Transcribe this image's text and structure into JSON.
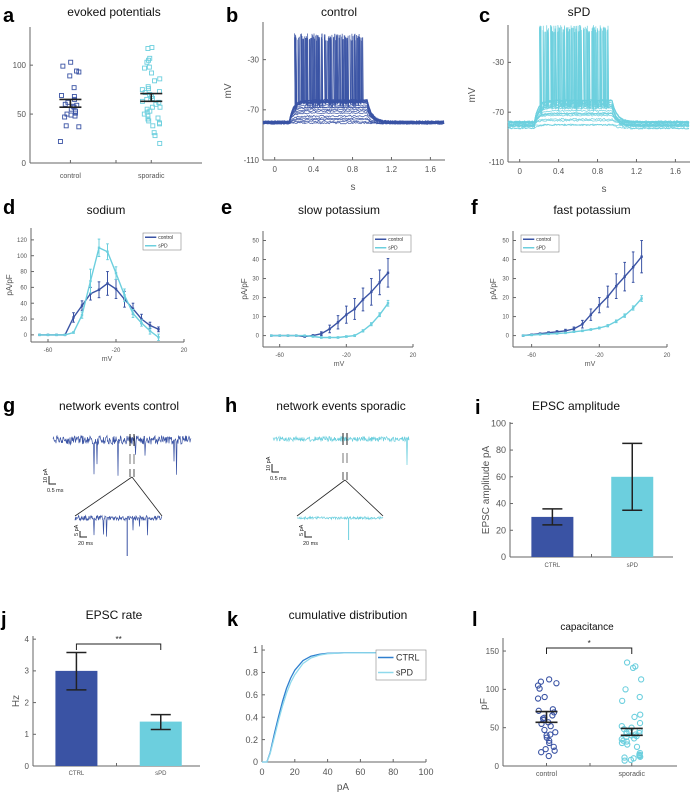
{
  "colors": {
    "control": "#3a53a4",
    "spd": "#6ccfde",
    "ctrl_line": "#2f7fcf",
    "spd_line": "#8fd9ec",
    "axis": "#666666",
    "error": "#222222"
  },
  "chart_data": [
    {
      "panel": "a",
      "type": "scatter",
      "title": "evoked potentials",
      "categories": [
        "control",
        "sporadic"
      ],
      "yticks": [
        0,
        50,
        100
      ],
      "ylim": [
        0,
        139
      ],
      "series": [
        {
          "values": [
            22,
            37,
            38,
            47,
            48,
            49,
            50,
            51,
            53,
            55,
            57,
            58,
            59,
            60,
            62,
            65,
            68,
            69,
            77,
            89,
            93,
            94,
            99,
            103
          ],
          "error": [
            57,
            65
          ]
        },
        {
          "values": [
            20,
            28,
            31,
            38,
            40,
            41,
            43,
            45,
            46,
            48,
            50,
            52,
            53,
            55,
            57,
            57,
            60,
            62,
            63,
            65,
            66,
            68,
            70,
            72,
            73,
            75,
            76,
            78,
            84,
            86,
            92,
            97,
            98,
            103,
            105,
            107,
            117,
            118
          ],
          "error": [
            63,
            71
          ]
        }
      ],
      "marker": "square"
    },
    {
      "panel": "b",
      "type": "line",
      "title": "control",
      "xlabel": "s",
      "ylabel": "mV",
      "xticks": [
        0,
        0.4,
        0.8,
        1.2,
        1.6
      ],
      "yticks": [
        -110,
        -70,
        -30
      ],
      "xlim": [
        -0.12,
        1.75
      ],
      "ylim": [
        -110,
        0
      ],
      "color": "#3a53a4"
    },
    {
      "panel": "c",
      "type": "line",
      "title": "sPD",
      "xlabel": "s",
      "ylabel": "mV",
      "xticks": [
        0,
        0.4,
        0.8,
        1.2,
        1.6
      ],
      "yticks": [
        -110,
        -70,
        -30
      ],
      "xlim": [
        -0.12,
        1.75
      ],
      "ylim": [
        -110,
        0
      ],
      "color": "#6ccfde"
    },
    {
      "panel": "d",
      "type": "line",
      "title": "sodium",
      "xlabel": "mV",
      "ylabel": "pA/pF",
      "xticks": [
        -60,
        -20,
        20
      ],
      "yticks": [
        0,
        20,
        40,
        60,
        80,
        100,
        120
      ],
      "xlim": [
        -70,
        20
      ],
      "ylim": [
        -9,
        135
      ],
      "x": [
        -65,
        -60,
        -55,
        -50,
        -45,
        -40,
        -35,
        -30,
        -25,
        -20,
        -15,
        -10,
        -5,
        0,
        5
      ],
      "series": [
        {
          "name": "control",
          "values": [
            0,
            0,
            0,
            0,
            22,
            37,
            52,
            57,
            65,
            58,
            45,
            33,
            20,
            12,
            7
          ],
          "errors": [
            0,
            0,
            0,
            0,
            6,
            6,
            8,
            10,
            15,
            12,
            10,
            7,
            6,
            4,
            3
          ]
        },
        {
          "name": "sPD",
          "values": [
            0,
            0,
            0,
            0,
            3,
            25,
            68,
            110,
            105,
            78,
            50,
            27,
            15,
            5,
            -3
          ],
          "errors": [
            0,
            0,
            0,
            0,
            1,
            4,
            15,
            11,
            10,
            8,
            8,
            5,
            4,
            4,
            4
          ]
        }
      ],
      "legend": "top-right"
    },
    {
      "panel": "e",
      "type": "line",
      "title": "slow potassium",
      "xlabel": "mV",
      "ylabel": "pA/pF",
      "xticks": [
        -60,
        -20,
        20
      ],
      "yticks": [
        0,
        10,
        20,
        30,
        40,
        50
      ],
      "xlim": [
        -70,
        20
      ],
      "ylim": [
        -6,
        55
      ],
      "x": [
        -65,
        -60,
        -55,
        -50,
        -45,
        -40,
        -35,
        -30,
        -25,
        -20,
        -15,
        -10,
        -5,
        0,
        5
      ],
      "series": [
        {
          "name": "control",
          "values": [
            0,
            0,
            0,
            0,
            -0.5,
            0,
            1,
            3.5,
            7,
            11,
            14,
            19,
            23,
            28,
            33
          ],
          "errors": [
            0,
            0,
            0,
            0,
            0.3,
            0.5,
            1,
            2,
            3.5,
            4.5,
            5.5,
            6,
            7,
            6.5,
            7.5
          ]
        },
        {
          "name": "sPD",
          "values": [
            0,
            0,
            0,
            0,
            0,
            -0.5,
            -1,
            -1,
            -1,
            -0.5,
            0,
            2.5,
            6,
            11,
            17
          ],
          "errors": [
            0,
            0,
            0,
            0,
            0,
            0.3,
            0.4,
            0.4,
            0.4,
            0.4,
            0.5,
            0.6,
            0.8,
            1,
            1.5
          ]
        }
      ],
      "legend": "top-right"
    },
    {
      "panel": "f",
      "type": "line",
      "title": "fast potassium",
      "xlabel": "mV",
      "ylabel": "pA/pF",
      "xticks": [
        -60,
        -20,
        20
      ],
      "yticks": [
        0,
        10,
        20,
        30,
        40,
        50
      ],
      "xlim": [
        -71,
        20
      ],
      "ylim": [
        -6,
        55
      ],
      "x": [
        -65,
        -60,
        -55,
        -50,
        -45,
        -40,
        -35,
        -30,
        -25,
        -20,
        -15,
        -10,
        -5,
        0,
        5
      ],
      "series": [
        {
          "name": "control",
          "values": [
            0,
            0.5,
            1,
            1.5,
            2,
            2.5,
            3.5,
            6,
            11,
            16,
            20.5,
            26,
            31,
            36,
            41.5
          ],
          "errors": [
            0.3,
            0.3,
            0.4,
            0.5,
            0.6,
            0.8,
            1,
            2,
            3,
            4,
            5.5,
            6.5,
            7.5,
            8,
            8.5
          ]
        },
        {
          "name": "sPD",
          "values": [
            0,
            0.3,
            0.6,
            0.9,
            1.1,
            1.4,
            2,
            2.5,
            3.2,
            4,
            5.2,
            7.5,
            10.5,
            14.5,
            19.5
          ],
          "errors": [
            0.2,
            0.2,
            0.2,
            0.2,
            0.3,
            0.3,
            0.3,
            0.4,
            0.4,
            0.5,
            0.6,
            0.7,
            0.9,
            1.1,
            1.5
          ]
        }
      ],
      "legend": "top-left"
    },
    {
      "panel": "g",
      "type": "trace",
      "title": "network events control",
      "color": "#3a53a4",
      "scale_bars": {
        "main_y": "10 pA",
        "main_x": "0.5 ms",
        "zoom_y": "5 pA",
        "zoom_x": "20 ms"
      }
    },
    {
      "panel": "h",
      "type": "trace",
      "title": "network events sporadic",
      "color": "#6ccfde",
      "scale_bars": {
        "main_y": "10 pA",
        "main_x": "0.5 ms",
        "zoom_y": "5 pA",
        "zoom_x": "20 ms"
      }
    },
    {
      "panel": "i",
      "type": "bar",
      "title": "EPSC amplitude",
      "ylabel": "EPSC amplitude pA",
      "categories": [
        "CTRL",
        "sPD"
      ],
      "values": [
        30,
        60
      ],
      "error_low": [
        24,
        35
      ],
      "error_high": [
        36,
        85
      ],
      "yticks": [
        0,
        20,
        40,
        60,
        80,
        100
      ],
      "ylim": [
        0,
        101
      ]
    },
    {
      "panel": "j",
      "type": "bar",
      "title": "EPSC rate",
      "ylabel": "Hz",
      "categories": [
        "CTRL",
        "sPD"
      ],
      "values": [
        3.0,
        1.4
      ],
      "error_low": [
        2.4,
        1.15
      ],
      "error_high": [
        3.58,
        1.62
      ],
      "yticks": [
        0,
        1,
        2,
        3,
        4
      ],
      "ylim": [
        0,
        4.1
      ],
      "significance": "**"
    },
    {
      "panel": "k",
      "type": "line",
      "title": "cumulative distribution",
      "xlabel": "pA",
      "xticks": [
        0,
        20,
        40,
        60,
        80,
        100
      ],
      "yticks": [
        0,
        0.2,
        0.4,
        0.6,
        0.8,
        1
      ],
      "yticklabels": [
        "0",
        "0.2",
        "0.4",
        "0.6",
        "0.8",
        "1"
      ],
      "xlim": [
        0,
        100
      ],
      "ylim": [
        0,
        1.045
      ],
      "x": [
        0,
        3,
        5,
        7.5,
        10,
        12.5,
        15,
        17.5,
        20,
        25,
        30,
        35,
        40,
        50,
        60,
        80,
        100
      ],
      "series": [
        {
          "name": "CTRL",
          "values": [
            0,
            0,
            0.086,
            0.25,
            0.4,
            0.54,
            0.66,
            0.75,
            0.82,
            0.906,
            0.946,
            0.962,
            0.971,
            0.975,
            0.976,
            0.977,
            0.978
          ]
        },
        {
          "name": "sPD",
          "values": [
            0,
            0,
            0.076,
            0.22,
            0.366,
            0.5,
            0.616,
            0.71,
            0.78,
            0.88,
            0.93,
            0.955,
            0.967,
            0.974,
            0.975,
            0.976,
            0.977
          ]
        }
      ],
      "legend": "top-right"
    },
    {
      "panel": "l",
      "type": "scatter",
      "title": "capacitance",
      "ylabel": "pF",
      "categories": [
        "control",
        "sporadic"
      ],
      "yticks": [
        0,
        50,
        100,
        150
      ],
      "ylim": [
        0,
        167
      ],
      "marker": "circle",
      "significance": "*",
      "series": [
        {
          "values": [
            13,
            18,
            20,
            22,
            25,
            30,
            33,
            37,
            40,
            41,
            44,
            47,
            52,
            55,
            57,
            60,
            62,
            63,
            66,
            70,
            72,
            74,
            88,
            90,
            101,
            105,
            108,
            110,
            113
          ],
          "error": [
            57,
            71
          ]
        },
        {
          "values": [
            7,
            8,
            10,
            11,
            12,
            13,
            14,
            15,
            17,
            25,
            28,
            30,
            32,
            33,
            35,
            36,
            38,
            39,
            40,
            41,
            42,
            43,
            44,
            45,
            46,
            48,
            50,
            52,
            56,
            64,
            67,
            85,
            90,
            100,
            113,
            128,
            130,
            135
          ],
          "error": [
            40,
            49
          ]
        }
      ]
    }
  ]
}
